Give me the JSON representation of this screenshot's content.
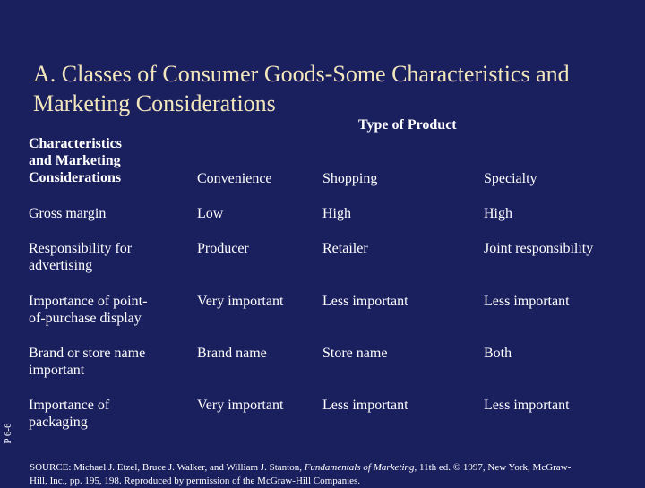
{
  "slide": {
    "title_line1": "A. Classes of Consumer Goods-Some Characteristics and",
    "title_line2": "Marketing Considerations",
    "type_of_product": "Type of Product",
    "side_code": "P 6-6",
    "colors": {
      "background": "#1a1f5e",
      "title": "#f2e6bc",
      "text": "#ffffff"
    }
  },
  "table": {
    "header": {
      "characteristics": [
        "Characteristics",
        "and Marketing",
        "Considerations"
      ],
      "convenience": "Convenience",
      "shopping": "Shopping",
      "specialty": "Specialty"
    },
    "rows": [
      {
        "label": [
          "Gross margin"
        ],
        "convenience": "Low",
        "shopping": "High",
        "specialty": "High"
      },
      {
        "label": [
          "Responsibility for",
          "advertising"
        ],
        "convenience": "Producer",
        "shopping": "Retailer",
        "specialty": "Joint responsibility"
      },
      {
        "label": [
          "Importance of point-",
          "of-purchase display"
        ],
        "convenience": "Very important",
        "shopping": "Less important",
        "specialty": "Less important"
      },
      {
        "label": [
          "Brand or store name",
          "important"
        ],
        "convenience": "Brand name",
        "shopping": "Store name",
        "specialty": "Both"
      },
      {
        "label": [
          "Importance of",
          "packaging"
        ],
        "convenience": "Very important",
        "shopping": "Less important",
        "specialty": "Less important"
      }
    ]
  },
  "source": {
    "prefix": "SOURCE: Michael J. Etzel, Bruce J. Walker, and William J. Stanton, ",
    "book": "Fundamentals of Marketing",
    "suffix_line1": ", 11th ed. © 1997, New York, McGraw-",
    "line2": "Hill, Inc., pp. 195, 198. Reproduced by permission of the McGraw-Hill Companies."
  }
}
